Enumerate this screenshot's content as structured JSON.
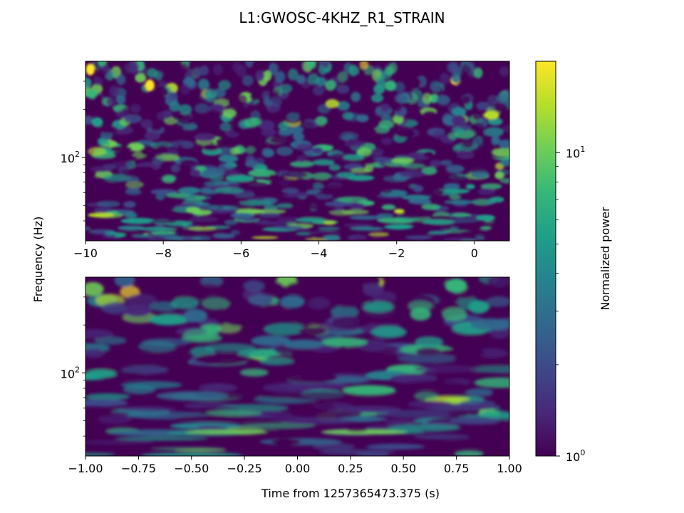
{
  "figure": {
    "title": "L1:GWOSC-4KHZ_R1_STRAIN",
    "ylabel": "Frequency (Hz)",
    "xlabel": "Time from 1257365473.375 (s)"
  },
  "colorbar": {
    "label": "Normalized power",
    "scale": "log",
    "range": [
      1,
      20
    ],
    "ticks": [
      {
        "value": 1,
        "base": "10",
        "exp": "0"
      },
      {
        "value": 10,
        "base": "10",
        "exp": "1"
      }
    ],
    "colormap": [
      "#440154",
      "#482878",
      "#3e4989",
      "#31688e",
      "#26828e",
      "#1f9e89",
      "#35b779",
      "#6ece58",
      "#b5de2b",
      "#fde725"
    ]
  },
  "chart_data": [
    {
      "type": "heatmap",
      "name": "upper-qscan",
      "x_range": [
        -10,
        0.9
      ],
      "y_scale": "log",
      "y_range": [
        30,
        400
      ],
      "x_ticks": [
        {
          "value": -10,
          "label": "−10"
        },
        {
          "value": -8,
          "label": "−8"
        },
        {
          "value": -6,
          "label": "−6"
        },
        {
          "value": -4,
          "label": "−4"
        },
        {
          "value": -2,
          "label": "−2"
        },
        {
          "value": 0,
          "label": "0"
        }
      ],
      "y_ticks": [
        {
          "value": 100,
          "base": "10",
          "exp": "2"
        }
      ]
    },
    {
      "type": "heatmap",
      "name": "lower-qscan",
      "x_range": [
        -1,
        1
      ],
      "y_scale": "log",
      "y_range": [
        30,
        400
      ],
      "x_ticks": [
        {
          "value": -1,
          "label": "−1.00"
        },
        {
          "value": -0.75,
          "label": "−0.75"
        },
        {
          "value": -0.5,
          "label": "−0.50"
        },
        {
          "value": -0.25,
          "label": "−0.25"
        },
        {
          "value": 0,
          "label": "0.00"
        },
        {
          "value": 0.25,
          "label": "0.25"
        },
        {
          "value": 0.5,
          "label": "0.50"
        },
        {
          "value": 0.75,
          "label": "0.75"
        },
        {
          "value": 1,
          "label": "1.00"
        }
      ],
      "y_ticks": [
        {
          "value": 100,
          "base": "10",
          "exp": "2"
        }
      ]
    }
  ]
}
